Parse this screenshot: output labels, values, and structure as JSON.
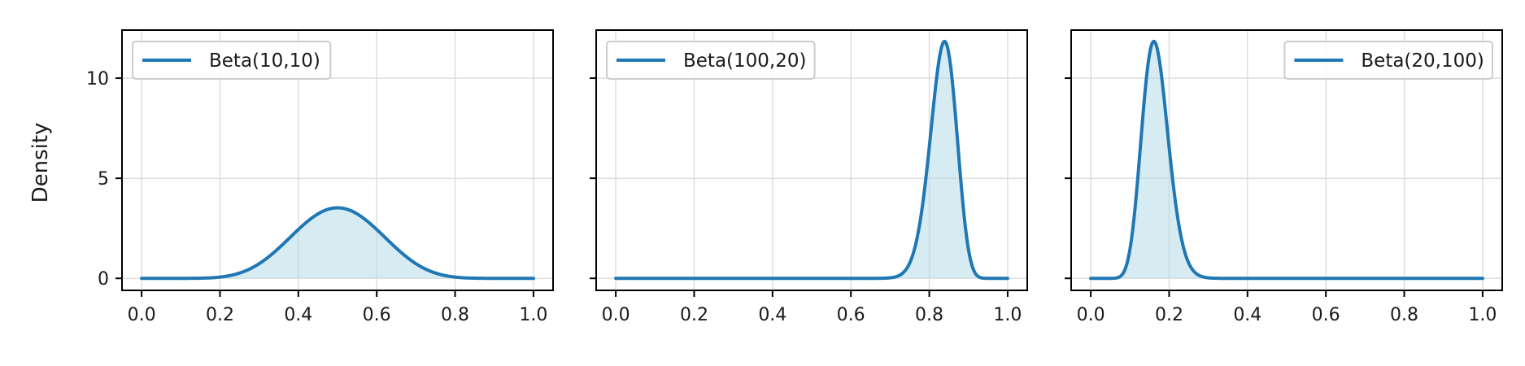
{
  "figure": {
    "ylabel": "Density"
  },
  "chart_data": [
    {
      "type": "area",
      "title": "",
      "xlabel": "",
      "ylabel": "Density",
      "xlim": [
        -0.05,
        1.05
      ],
      "ylim": [
        -0.6,
        12.4
      ],
      "xticks": [
        0.0,
        0.2,
        0.4,
        0.6,
        0.8,
        1.0
      ],
      "xtick_labels": [
        "0.0",
        "0.2",
        "0.4",
        "0.6",
        "0.8",
        "1.0"
      ],
      "yticks": [
        0,
        5,
        10
      ],
      "ytick_labels": [
        "0",
        "5",
        "10"
      ],
      "grid": true,
      "legend_position": "upper-left",
      "series": [
        {
          "name": "Beta(10,10)",
          "alpha": 10,
          "beta": 10,
          "line_color": "#1f77b4",
          "fill_color": "#add8e6",
          "x": [
            0.0,
            0.05,
            0.1,
            0.15,
            0.2,
            0.25,
            0.3,
            0.35,
            0.4,
            0.45,
            0.5,
            0.55,
            0.6,
            0.65,
            0.7,
            0.75,
            0.8,
            0.85,
            0.9,
            0.95,
            1.0
          ],
          "y": [
            0.0,
            0.0,
            0.0,
            0.04,
            0.18,
            0.59,
            1.32,
            2.28,
            3.06,
            3.51,
            3.52,
            3.51,
            3.06,
            2.28,
            1.32,
            0.59,
            0.18,
            0.04,
            0.0,
            0.0,
            0.0
          ]
        }
      ]
    },
    {
      "type": "area",
      "title": "",
      "xlabel": "",
      "ylabel": "",
      "xlim": [
        -0.05,
        1.05
      ],
      "ylim": [
        -0.6,
        12.4
      ],
      "xticks": [
        0.0,
        0.2,
        0.4,
        0.6,
        0.8,
        1.0
      ],
      "xtick_labels": [
        "0.0",
        "0.2",
        "0.4",
        "0.6",
        "0.8",
        "1.0"
      ],
      "yticks": [
        0,
        5,
        10
      ],
      "ytick_labels": [
        "",
        "",
        ""
      ],
      "grid": true,
      "legend_position": "upper-left",
      "series": [
        {
          "name": "Beta(100,20)",
          "alpha": 100,
          "beta": 20,
          "line_color": "#1f77b4",
          "fill_color": "#add8e6",
          "x": [
            0.0,
            0.7,
            0.75,
            0.8,
            0.84,
            0.88,
            0.92,
            0.95,
            1.0
          ],
          "y": [
            0.0,
            0.14,
            1.67,
            7.54,
            11.8,
            6.9,
            0.93,
            0.02,
            0.0
          ]
        }
      ]
    },
    {
      "type": "area",
      "title": "",
      "xlabel": "",
      "ylabel": "",
      "xlim": [
        -0.05,
        1.05
      ],
      "ylim": [
        -0.6,
        12.4
      ],
      "xticks": [
        0.0,
        0.2,
        0.4,
        0.6,
        0.8,
        1.0
      ],
      "xtick_labels": [
        "0.0",
        "0.2",
        "0.4",
        "0.6",
        "0.8",
        "1.0"
      ],
      "yticks": [
        0,
        5,
        10
      ],
      "ytick_labels": [
        "",
        "",
        ""
      ],
      "grid": true,
      "legend_position": "upper-right",
      "series": [
        {
          "name": "Beta(20,100)",
          "alpha": 20,
          "beta": 100,
          "line_color": "#1f77b4",
          "fill_color": "#add8e6",
          "x": [
            0.0,
            0.05,
            0.08,
            0.12,
            0.16,
            0.2,
            0.25,
            0.3,
            1.0
          ],
          "y": [
            0.0,
            0.02,
            0.93,
            6.9,
            11.8,
            7.54,
            1.67,
            0.14,
            0.0
          ]
        }
      ]
    }
  ]
}
